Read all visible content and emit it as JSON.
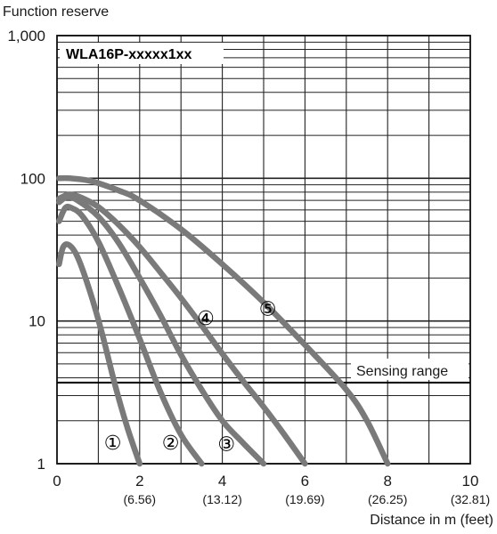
{
  "chart_data": {
    "type": "line",
    "title": "",
    "ylabel": "Function reserve",
    "xlabel": "Distance in m (feet)",
    "model": "WLA16P-xxxxx1xx",
    "x_scale": "linear",
    "y_scale": "log",
    "xlim": [
      0,
      10
    ],
    "ylim": [
      1,
      1000
    ],
    "x_ticks": [
      {
        "value": 0,
        "label": "0",
        "sub": ""
      },
      {
        "value": 2,
        "label": "2",
        "sub": "(6.56)"
      },
      {
        "value": 4,
        "label": "4",
        "sub": "(13.12)"
      },
      {
        "value": 6,
        "label": "6",
        "sub": "(19.69)"
      },
      {
        "value": 8,
        "label": "8",
        "sub": "(26.25)"
      },
      {
        "value": 10,
        "label": "10",
        "sub": "(32.81)"
      }
    ],
    "y_ticks": [
      {
        "value": 1,
        "label": "1"
      },
      {
        "value": 10,
        "label": "10"
      },
      {
        "value": 100,
        "label": "100"
      },
      {
        "value": 1000,
        "label": "1,000"
      }
    ],
    "grid": true,
    "threshold": {
      "value": 3.7,
      "label": "Sensing range"
    },
    "series": [
      {
        "name": "①",
        "label_at": [
          1.35,
          1.38
        ],
        "points": [
          [
            0.05,
            25
          ],
          [
            0.15,
            33
          ],
          [
            0.3,
            34
          ],
          [
            0.5,
            28
          ],
          [
            0.8,
            16
          ],
          [
            1.1,
            8
          ],
          [
            1.4,
            3.6
          ],
          [
            1.7,
            1.8
          ],
          [
            2.0,
            1.0
          ]
        ]
      },
      {
        "name": "②",
        "label_at": [
          2.75,
          1.38
        ],
        "points": [
          [
            0.05,
            50
          ],
          [
            0.2,
            62
          ],
          [
            0.35,
            62
          ],
          [
            0.6,
            55
          ],
          [
            1.0,
            36
          ],
          [
            1.5,
            17
          ],
          [
            2.0,
            7.5
          ],
          [
            2.5,
            3.2
          ],
          [
            3.0,
            1.6
          ],
          [
            3.5,
            1.0
          ]
        ]
      },
      {
        "name": "③",
        "label_at": [
          4.1,
          1.35
        ],
        "points": [
          [
            0.05,
            68
          ],
          [
            0.25,
            74
          ],
          [
            0.5,
            70
          ],
          [
            1.0,
            54
          ],
          [
            1.5,
            35
          ],
          [
            2.0,
            20
          ],
          [
            2.5,
            11
          ],
          [
            3.0,
            5.8
          ],
          [
            3.5,
            3.3
          ],
          [
            4.0,
            2.0
          ],
          [
            4.5,
            1.4
          ],
          [
            5.0,
            1.0
          ]
        ]
      },
      {
        "name": "④",
        "label_at": [
          3.6,
          10.3
        ],
        "points": [
          [
            0.05,
            72
          ],
          [
            0.3,
            77
          ],
          [
            0.6,
            73
          ],
          [
            1.0,
            63
          ],
          [
            1.5,
            47
          ],
          [
            2.0,
            33
          ],
          [
            2.5,
            22
          ],
          [
            3.0,
            14.5
          ],
          [
            3.5,
            9.3
          ],
          [
            4.0,
            5.9
          ],
          [
            4.5,
            3.8
          ],
          [
            5.0,
            2.5
          ],
          [
            5.5,
            1.6
          ],
          [
            6.0,
            1.0
          ]
        ]
      },
      {
        "name": "⑤",
        "label_at": [
          5.1,
          12.0
        ],
        "points": [
          [
            0.05,
            100
          ],
          [
            0.3,
            100
          ],
          [
            0.8,
            96
          ],
          [
            1.5,
            82
          ],
          [
            2.0,
            70
          ],
          [
            3.0,
            44
          ],
          [
            4.0,
            25
          ],
          [
            5.0,
            13.5
          ],
          [
            6.0,
            6.8
          ],
          [
            7.0,
            3.3
          ],
          [
            7.5,
            2.0
          ],
          [
            8.0,
            1.0
          ]
        ]
      }
    ]
  }
}
